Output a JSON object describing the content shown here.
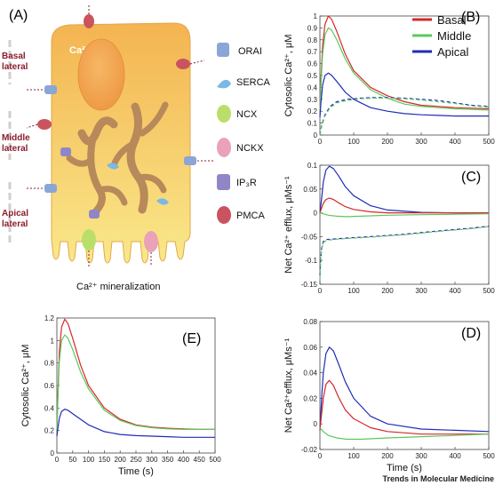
{
  "figure": {
    "credit": "Trends in Molecular Medicine",
    "colors": {
      "basal": "#d62728",
      "middle": "#5cc85c",
      "apical": "#1f2db5",
      "cell": "#f7c85a",
      "organelle": "#b8895a"
    },
    "panel_a": {
      "letter": "(A)",
      "ca_label": "Ca²⁺",
      "side_labels": [
        {
          "line1": "Basal",
          "line2": "lateral"
        },
        {
          "line1": "Middle",
          "line2": "lateral"
        },
        {
          "line1": "Apical",
          "line2": "lateral"
        }
      ],
      "components": [
        {
          "name": "ORAI",
          "icon": "orai-channel-icon",
          "color": "#8aa6d8"
        },
        {
          "name": "SERCA",
          "icon": "serca-pump-icon",
          "color": "#7ab8e6"
        },
        {
          "name": "NCX",
          "icon": "ncx-exchanger-icon",
          "color": "#b9df6a"
        },
        {
          "name": "NCKX",
          "icon": "nckx-exchanger-icon",
          "color": "#e9a2b8"
        },
        {
          "name": "IP₃R",
          "icon": "ip3r-receptor-icon",
          "color": "#8f86c7"
        },
        {
          "name": "PMCA",
          "icon": "pmca-pump-icon",
          "color": "#c9545f"
        }
      ],
      "mineralization_label": "Ca²⁺ mineralization"
    }
  },
  "chart_data": [
    {
      "id": "B",
      "letter": "(B)",
      "type": "line",
      "ylabel": "Cytosolic Ca²⁺, μM",
      "xlabel": "",
      "xlim": [
        0,
        500
      ],
      "ylim": [
        0,
        1
      ],
      "xticks": [
        0,
        100,
        200,
        300,
        400,
        500
      ],
      "yticks": [
        0,
        0.1,
        0.2,
        0.3,
        0.4,
        0.5,
        0.6,
        0.7,
        0.8,
        0.9,
        1
      ],
      "ytick_labels": [
        "0",
        "0.1",
        "0.2",
        "0.3",
        "0.4",
        "0.5",
        "0.6",
        "0.7",
        "0.8",
        "0.9",
        "1"
      ],
      "legend": {
        "placement": "top-right",
        "entries": [
          "Basal",
          "Middle",
          "Apical"
        ]
      },
      "series": [
        {
          "name": "Basal",
          "color": "#d62728",
          "dash": false,
          "x": [
            0,
            3,
            8,
            15,
            25,
            35,
            50,
            75,
            100,
            150,
            200,
            250,
            300,
            350,
            400,
            450,
            500
          ],
          "y": [
            0.2,
            0.45,
            0.75,
            0.93,
            1.0,
            0.97,
            0.87,
            0.68,
            0.54,
            0.4,
            0.33,
            0.28,
            0.25,
            0.24,
            0.23,
            0.225,
            0.22
          ]
        },
        {
          "name": "Middle",
          "color": "#5cc85c",
          "dash": false,
          "x": [
            0,
            3,
            8,
            15,
            25,
            35,
            50,
            75,
            100,
            150,
            200,
            250,
            300,
            350,
            400,
            450,
            500
          ],
          "y": [
            0.2,
            0.42,
            0.68,
            0.84,
            0.9,
            0.88,
            0.8,
            0.64,
            0.52,
            0.38,
            0.31,
            0.26,
            0.24,
            0.23,
            0.22,
            0.215,
            0.21
          ]
        },
        {
          "name": "Apical",
          "color": "#1f2db5",
          "dash": false,
          "x": [
            0,
            3,
            8,
            15,
            25,
            35,
            50,
            75,
            100,
            150,
            200,
            250,
            300,
            350,
            400,
            450,
            500
          ],
          "y": [
            0.15,
            0.27,
            0.42,
            0.5,
            0.52,
            0.5,
            0.45,
            0.36,
            0.3,
            0.23,
            0.2,
            0.18,
            0.17,
            0.165,
            0.16,
            0.16,
            0.16
          ]
        },
        {
          "name": "",
          "color": "#1f2db5",
          "dash": true,
          "x": [
            0,
            5,
            15,
            30,
            50,
            80,
            120,
            160,
            200,
            250,
            300,
            350,
            400,
            450,
            500
          ],
          "y": [
            0,
            0.08,
            0.17,
            0.24,
            0.28,
            0.3,
            0.31,
            0.315,
            0.315,
            0.31,
            0.3,
            0.29,
            0.27,
            0.25,
            0.24
          ]
        },
        {
          "name": "",
          "color": "#5cc85c",
          "dash": true,
          "x": [
            0,
            5,
            15,
            30,
            50,
            80,
            120,
            160,
            200,
            250,
            300,
            350,
            400,
            450,
            500
          ],
          "y": [
            0,
            0.07,
            0.16,
            0.23,
            0.27,
            0.29,
            0.305,
            0.31,
            0.31,
            0.305,
            0.295,
            0.28,
            0.265,
            0.245,
            0.235
          ]
        }
      ]
    },
    {
      "id": "C",
      "letter": "(C)",
      "type": "line",
      "ylabel": "Net Ca²⁺ efflux, μMs⁻¹",
      "xlabel": "",
      "xlim": [
        0,
        500
      ],
      "ylim": [
        -0.15,
        0.1
      ],
      "xticks": [
        0,
        100,
        200,
        300,
        400,
        500
      ],
      "yticks": [
        -0.15,
        -0.1,
        -0.05,
        0,
        0.05,
        0.1
      ],
      "ytick_labels": [
        "-0.15",
        "-0.1",
        "-0.05",
        "0",
        "0.05",
        "0.1"
      ],
      "series": [
        {
          "name": "Apical",
          "color": "#1f2db5",
          "dash": false,
          "x": [
            0,
            5,
            10,
            18,
            28,
            40,
            55,
            75,
            100,
            150,
            200,
            300,
            400,
            500
          ],
          "y": [
            0,
            0.03,
            0.065,
            0.09,
            0.098,
            0.093,
            0.078,
            0.055,
            0.036,
            0.015,
            0.006,
            0.001,
            0.0,
            0.0
          ]
        },
        {
          "name": "Basal",
          "color": "#d62728",
          "dash": false,
          "x": [
            0,
            5,
            10,
            18,
            28,
            40,
            55,
            75,
            100,
            150,
            200,
            300,
            400,
            500
          ],
          "y": [
            0,
            0.01,
            0.02,
            0.028,
            0.031,
            0.028,
            0.021,
            0.013,
            0.007,
            0.002,
            0.0,
            0.0,
            0.0,
            0.0
          ]
        },
        {
          "name": "Middle",
          "color": "#5cc85c",
          "dash": false,
          "x": [
            0,
            10,
            25,
            50,
            80,
            120,
            200,
            300,
            400,
            500
          ],
          "y": [
            0,
            -0.002,
            -0.005,
            -0.007,
            -0.008,
            -0.007,
            -0.005,
            -0.004,
            -0.003,
            -0.002
          ]
        },
        {
          "name": "",
          "color": "#1f2db5",
          "dash": true,
          "x": [
            0,
            2,
            5,
            10,
            20,
            40,
            80,
            150,
            250,
            350,
            450,
            500
          ],
          "y": [
            -0.13,
            -0.1,
            -0.075,
            -0.06,
            -0.056,
            -0.055,
            -0.053,
            -0.05,
            -0.045,
            -0.038,
            -0.032,
            -0.028
          ]
        },
        {
          "name": "",
          "color": "#5cc85c",
          "dash": true,
          "x": [
            0,
            2,
            5,
            10,
            20,
            40,
            80,
            150,
            250,
            350,
            450,
            500
          ],
          "y": [
            -0.14,
            -0.105,
            -0.078,
            -0.062,
            -0.058,
            -0.056,
            -0.054,
            -0.051,
            -0.046,
            -0.039,
            -0.033,
            -0.029
          ]
        }
      ]
    },
    {
      "id": "D",
      "letter": "(D)",
      "type": "line",
      "ylabel": "Net Ca²⁺efflux, μMs⁻¹",
      "xlabel": "Time (s)",
      "xlim": [
        0,
        500
      ],
      "ylim": [
        -0.02,
        0.08
      ],
      "xticks": [
        0,
        100,
        200,
        300,
        400,
        500
      ],
      "yticks": [
        -0.02,
        0,
        0.02,
        0.04,
        0.06,
        0.08
      ],
      "ytick_labels": [
        "-0.02",
        "0",
        "0.02",
        "0.04",
        "0.06",
        "0.08"
      ],
      "series": [
        {
          "name": "Apical",
          "color": "#1f2db5",
          "dash": false,
          "x": [
            0,
            5,
            10,
            18,
            28,
            40,
            55,
            75,
            100,
            150,
            200,
            300,
            400,
            500
          ],
          "y": [
            -0.005,
            0.02,
            0.04,
            0.055,
            0.06,
            0.057,
            0.047,
            0.033,
            0.02,
            0.006,
            0.0,
            -0.004,
            -0.005,
            -0.006
          ]
        },
        {
          "name": "Basal",
          "color": "#d62728",
          "dash": false,
          "x": [
            0,
            5,
            10,
            18,
            28,
            40,
            55,
            75,
            100,
            150,
            200,
            300,
            400,
            500
          ],
          "y": [
            -0.005,
            0.008,
            0.02,
            0.031,
            0.034,
            0.03,
            0.021,
            0.011,
            0.004,
            -0.003,
            -0.006,
            -0.008,
            -0.008,
            -0.008
          ]
        },
        {
          "name": "Middle",
          "color": "#5cc85c",
          "dash": false,
          "x": [
            0,
            10,
            25,
            50,
            80,
            120,
            200,
            300,
            400,
            500
          ],
          "y": [
            -0.003,
            -0.006,
            -0.009,
            -0.011,
            -0.012,
            -0.012,
            -0.011,
            -0.01,
            -0.009,
            -0.008
          ]
        }
      ]
    },
    {
      "id": "E",
      "letter": "(E)",
      "type": "line",
      "ylabel": "Cytosolic Ca²⁺, μM",
      "xlabel": "Time (s)",
      "xlim": [
        0,
        500
      ],
      "ylim": [
        0,
        1.2
      ],
      "xticks": [
        0,
        50,
        100,
        150,
        200,
        250,
        300,
        350,
        400,
        450,
        500
      ],
      "yticks": [
        0,
        0.2,
        0.4,
        0.6,
        0.8,
        1,
        1.2
      ],
      "ytick_labels": [
        "0",
        "0.2",
        "0.4",
        "0.6",
        "0.8",
        "1",
        "1.2"
      ],
      "series": [
        {
          "name": "Basal",
          "color": "#d62728",
          "dash": false,
          "x": [
            0,
            3,
            8,
            15,
            25,
            35,
            50,
            75,
            100,
            150,
            200,
            250,
            300,
            350,
            400,
            450,
            500
          ],
          "y": [
            0.2,
            0.5,
            0.9,
            1.12,
            1.19,
            1.15,
            1.02,
            0.78,
            0.6,
            0.4,
            0.3,
            0.25,
            0.23,
            0.22,
            0.215,
            0.21,
            0.21
          ]
        },
        {
          "name": "Middle",
          "color": "#5cc85c",
          "dash": false,
          "x": [
            0,
            3,
            8,
            15,
            25,
            35,
            50,
            75,
            100,
            150,
            200,
            250,
            300,
            350,
            400,
            450,
            500
          ],
          "y": [
            0.2,
            0.48,
            0.82,
            1.0,
            1.05,
            1.02,
            0.92,
            0.72,
            0.57,
            0.38,
            0.29,
            0.245,
            0.225,
            0.215,
            0.21,
            0.21,
            0.21
          ]
        },
        {
          "name": "Apical",
          "color": "#1f2db5",
          "dash": false,
          "x": [
            0,
            3,
            8,
            15,
            25,
            35,
            50,
            75,
            100,
            150,
            200,
            250,
            300,
            350,
            400,
            450,
            500
          ],
          "y": [
            0.15,
            0.22,
            0.31,
            0.37,
            0.39,
            0.38,
            0.35,
            0.3,
            0.25,
            0.19,
            0.165,
            0.155,
            0.15,
            0.145,
            0.14,
            0.14,
            0.14
          ]
        }
      ]
    }
  ]
}
